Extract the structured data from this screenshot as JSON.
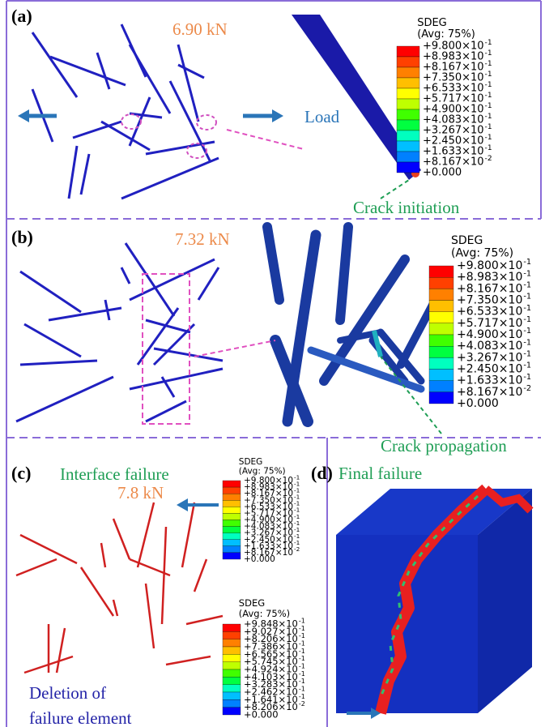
{
  "panels": [
    {
      "label": "(a)",
      "force": "6.90 kN",
      "load": "Load",
      "note": "Crack initiation",
      "legend": {
        "title": "SDEG",
        "subtitle": "(Avg: 75%)",
        "entries": [
          {
            "mantissa": "+9.800×10",
            "exponent": "-1"
          },
          {
            "mantissa": "+8.983×10",
            "exponent": "-1"
          },
          {
            "mantissa": "+8.167×10",
            "exponent": "-1"
          },
          {
            "mantissa": "+7.350×10",
            "exponent": "-1"
          },
          {
            "mantissa": "+6.533×10",
            "exponent": "-1"
          },
          {
            "mantissa": "+5.717×10",
            "exponent": "-1"
          },
          {
            "mantissa": "+4.900×10",
            "exponent": "-1"
          },
          {
            "mantissa": "+4.083×10",
            "exponent": "-1"
          },
          {
            "mantissa": "+3.267×10",
            "exponent": "-1"
          },
          {
            "mantissa": "+2.450×10",
            "exponent": "-1"
          },
          {
            "mantissa": "+1.633×10",
            "exponent": "-1"
          },
          {
            "mantissa": "+8.167×10",
            "exponent": "-2"
          },
          {
            "mantissa": "+0.000"
          }
        ]
      }
    },
    {
      "label": "(b)",
      "force": "7.32 kN",
      "note": "Crack propagation",
      "legend": {
        "title": "SDEG",
        "subtitle": "(Avg: 75%)",
        "entries": [
          {
            "mantissa": "+9.800×10",
            "exponent": "-1"
          },
          {
            "mantissa": "+8.983×10",
            "exponent": "-1"
          },
          {
            "mantissa": "+8.167×10",
            "exponent": "-1"
          },
          {
            "mantissa": "+7.350×10",
            "exponent": "-1"
          },
          {
            "mantissa": "+6.533×10",
            "exponent": "-1"
          },
          {
            "mantissa": "+5.717×10",
            "exponent": "-1"
          },
          {
            "mantissa": "+4.900×10",
            "exponent": "-1"
          },
          {
            "mantissa": "+4.083×10",
            "exponent": "-1"
          },
          {
            "mantissa": "+3.267×10",
            "exponent": "-1"
          },
          {
            "mantissa": "+2.450×10",
            "exponent": "-1"
          },
          {
            "mantissa": "+1.633×10",
            "exponent": "-1"
          },
          {
            "mantissa": "+8.167×10",
            "exponent": "-2"
          },
          {
            "mantissa": "+0.000"
          }
        ]
      }
    },
    {
      "label": "(c)",
      "title": "Interface failure",
      "force": "7.8 kN",
      "note": [
        "Deletion of",
        "failure element"
      ],
      "legend": {
        "title": "SDEG",
        "subtitle": "(Avg: 75%)",
        "entries": [
          {
            "mantissa": "+9.800×10",
            "exponent": "-1"
          },
          {
            "mantissa": "+8.983×10",
            "exponent": "-1"
          },
          {
            "mantissa": "+8.167×10",
            "exponent": "-1"
          },
          {
            "mantissa": "+7.350×10",
            "exponent": "-1"
          },
          {
            "mantissa": "+6.533×10",
            "exponent": "-1"
          },
          {
            "mantissa": "+5.717×10",
            "exponent": "-1"
          },
          {
            "mantissa": "+4.900×10",
            "exponent": "-1"
          },
          {
            "mantissa": "+4.083×10",
            "exponent": "-1"
          },
          {
            "mantissa": "+3.267×10",
            "exponent": "-1"
          },
          {
            "mantissa": "+2.450×10",
            "exponent": "-1"
          },
          {
            "mantissa": "+1.633×10",
            "exponent": "-1"
          },
          {
            "mantissa": "+8.167×10",
            "exponent": "-2"
          },
          {
            "mantissa": "+0.000"
          }
        ]
      },
      "legend2": {
        "title": "SDEG",
        "subtitle": "(Avg: 75%)",
        "entries": [
          {
            "mantissa": "+9.848×10",
            "exponent": "-1"
          },
          {
            "mantissa": "+9.027×10",
            "exponent": "-1"
          },
          {
            "mantissa": "+8.206×10",
            "exponent": "-1"
          },
          {
            "mantissa": "+7.386×10",
            "exponent": "-1"
          },
          {
            "mantissa": "+6.565×10",
            "exponent": "-1"
          },
          {
            "mantissa": "+5.745×10",
            "exponent": "-1"
          },
          {
            "mantissa": "+4.924×10",
            "exponent": "-1"
          },
          {
            "mantissa": "+4.103×10",
            "exponent": "-1"
          },
          {
            "mantissa": "+3.283×10",
            "exponent": "-1"
          },
          {
            "mantissa": "+2.462×10",
            "exponent": "-1"
          },
          {
            "mantissa": "+1.641×10",
            "exponent": "-1"
          },
          {
            "mantissa": "+8.206×10",
            "exponent": "-2"
          },
          {
            "mantissa": "+0.000"
          }
        ]
      }
    },
    {
      "label": "(d)",
      "title": "Final failure"
    }
  ]
}
